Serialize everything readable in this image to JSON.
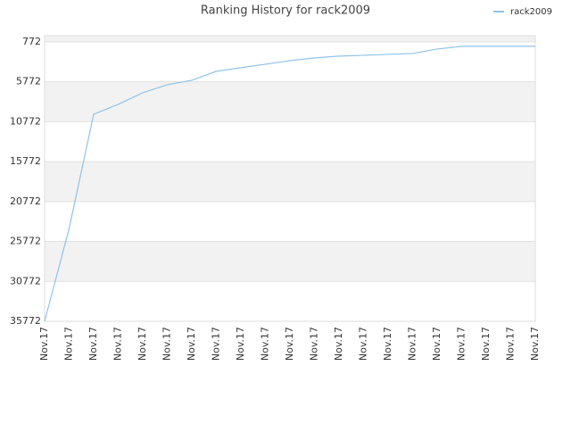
{
  "chart_data": {
    "type": "line",
    "title": "Ranking History for rack2009",
    "categories": [
      "Nov.17",
      "Nov.17",
      "Nov.17",
      "Nov.17",
      "Nov.17",
      "Nov.17",
      "Nov.17",
      "Nov.17",
      "Nov.17",
      "Nov.17",
      "Nov.17",
      "Nov.17",
      "Nov.17",
      "Nov.17",
      "Nov.17",
      "Nov.17",
      "Nov.17",
      "Nov.17",
      "Nov.17",
      "Nov.17",
      "Nov.17"
    ],
    "series": [
      {
        "name": "rack2009",
        "color": "#8fc3ea",
        "values": [
          35772,
          24140,
          9830,
          8600,
          7150,
          6140,
          5580,
          4460,
          4010,
          3570,
          3120,
          2780,
          2560,
          2450,
          2340,
          2230,
          1670,
          1330,
          1330,
          1330,
          1330
        ]
      }
    ],
    "ylim": [
      35772,
      0
    ],
    "yticks": [
      772,
      5772,
      10772,
      15772,
      20772,
      25772,
      30772,
      35772
    ],
    "grid": true,
    "legend": "top-right"
  }
}
